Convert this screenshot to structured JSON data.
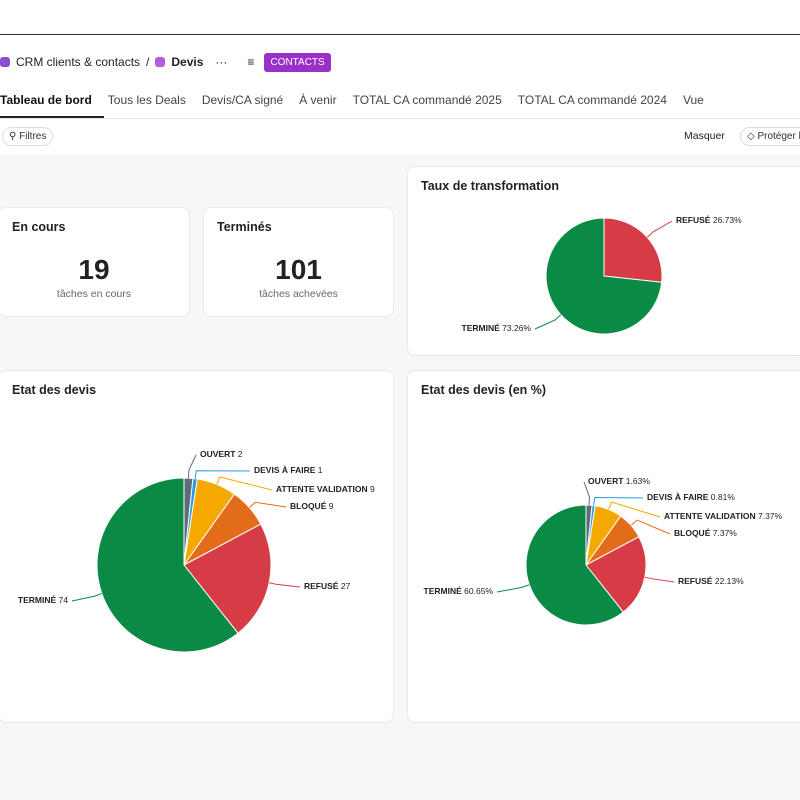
{
  "breadcrumb": {
    "workspace": "CRM clients & contacts",
    "page": "Devis",
    "tag": "CONTACTS"
  },
  "tabs": [
    "Tableau de bord",
    "Tous les Deals",
    "Devis/CA signé",
    "À venir",
    "TOTAL CA commandé 2025",
    "TOTAL CA commandé 2024",
    "Vue"
  ],
  "toolbar": {
    "filters": "Filtres",
    "hide": "Masquer",
    "protect": "Protéger l"
  },
  "cards": [
    {
      "title": "En cours",
      "value": "19",
      "caption": "tâches en cours"
    },
    {
      "title": "Terminés",
      "value": "101",
      "caption": "tâches achevées"
    }
  ],
  "chart_data": [
    {
      "type": "pie",
      "title": "Taux de transformation",
      "categories": [
        "REFUSÉ",
        "TERMINÉ"
      ],
      "values": [
        26.73,
        73.26
      ],
      "value_labels": [
        "26.73%",
        "73.26%"
      ],
      "colors": [
        "#d63c45",
        "#0a8a45"
      ]
    },
    {
      "type": "pie",
      "title": "Etat des devis",
      "categories": [
        "OUVERT",
        "DEVIS À FAIRE",
        "ATTENTE VALIDATION",
        "BLOQUÉ",
        "REFUSÉ",
        "TERMINÉ"
      ],
      "values": [
        2,
        1,
        9,
        9,
        27,
        74
      ],
      "colors": [
        "#5f6b7a",
        "#2d9cdb",
        "#f5a800",
        "#e36c1a",
        "#d63c45",
        "#0a8a45"
      ]
    },
    {
      "type": "pie",
      "title": "Etat des devis (en %)",
      "categories": [
        "OUVERT",
        "DEVIS À FAIRE",
        "ATTENTE VALIDATION",
        "BLOQUÉ",
        "REFUSÉ",
        "TERMINÉ"
      ],
      "values": [
        1.63,
        0.81,
        7.37,
        7.37,
        22.13,
        60.65
      ],
      "value_labels": [
        "1.63%",
        "0.81%",
        "7.37%",
        "7.37%",
        "22.13%",
        "60.65%"
      ],
      "colors": [
        "#5f6b7a",
        "#2d9cdb",
        "#f5a800",
        "#e36c1a",
        "#d63c45",
        "#0a8a45"
      ]
    }
  ]
}
